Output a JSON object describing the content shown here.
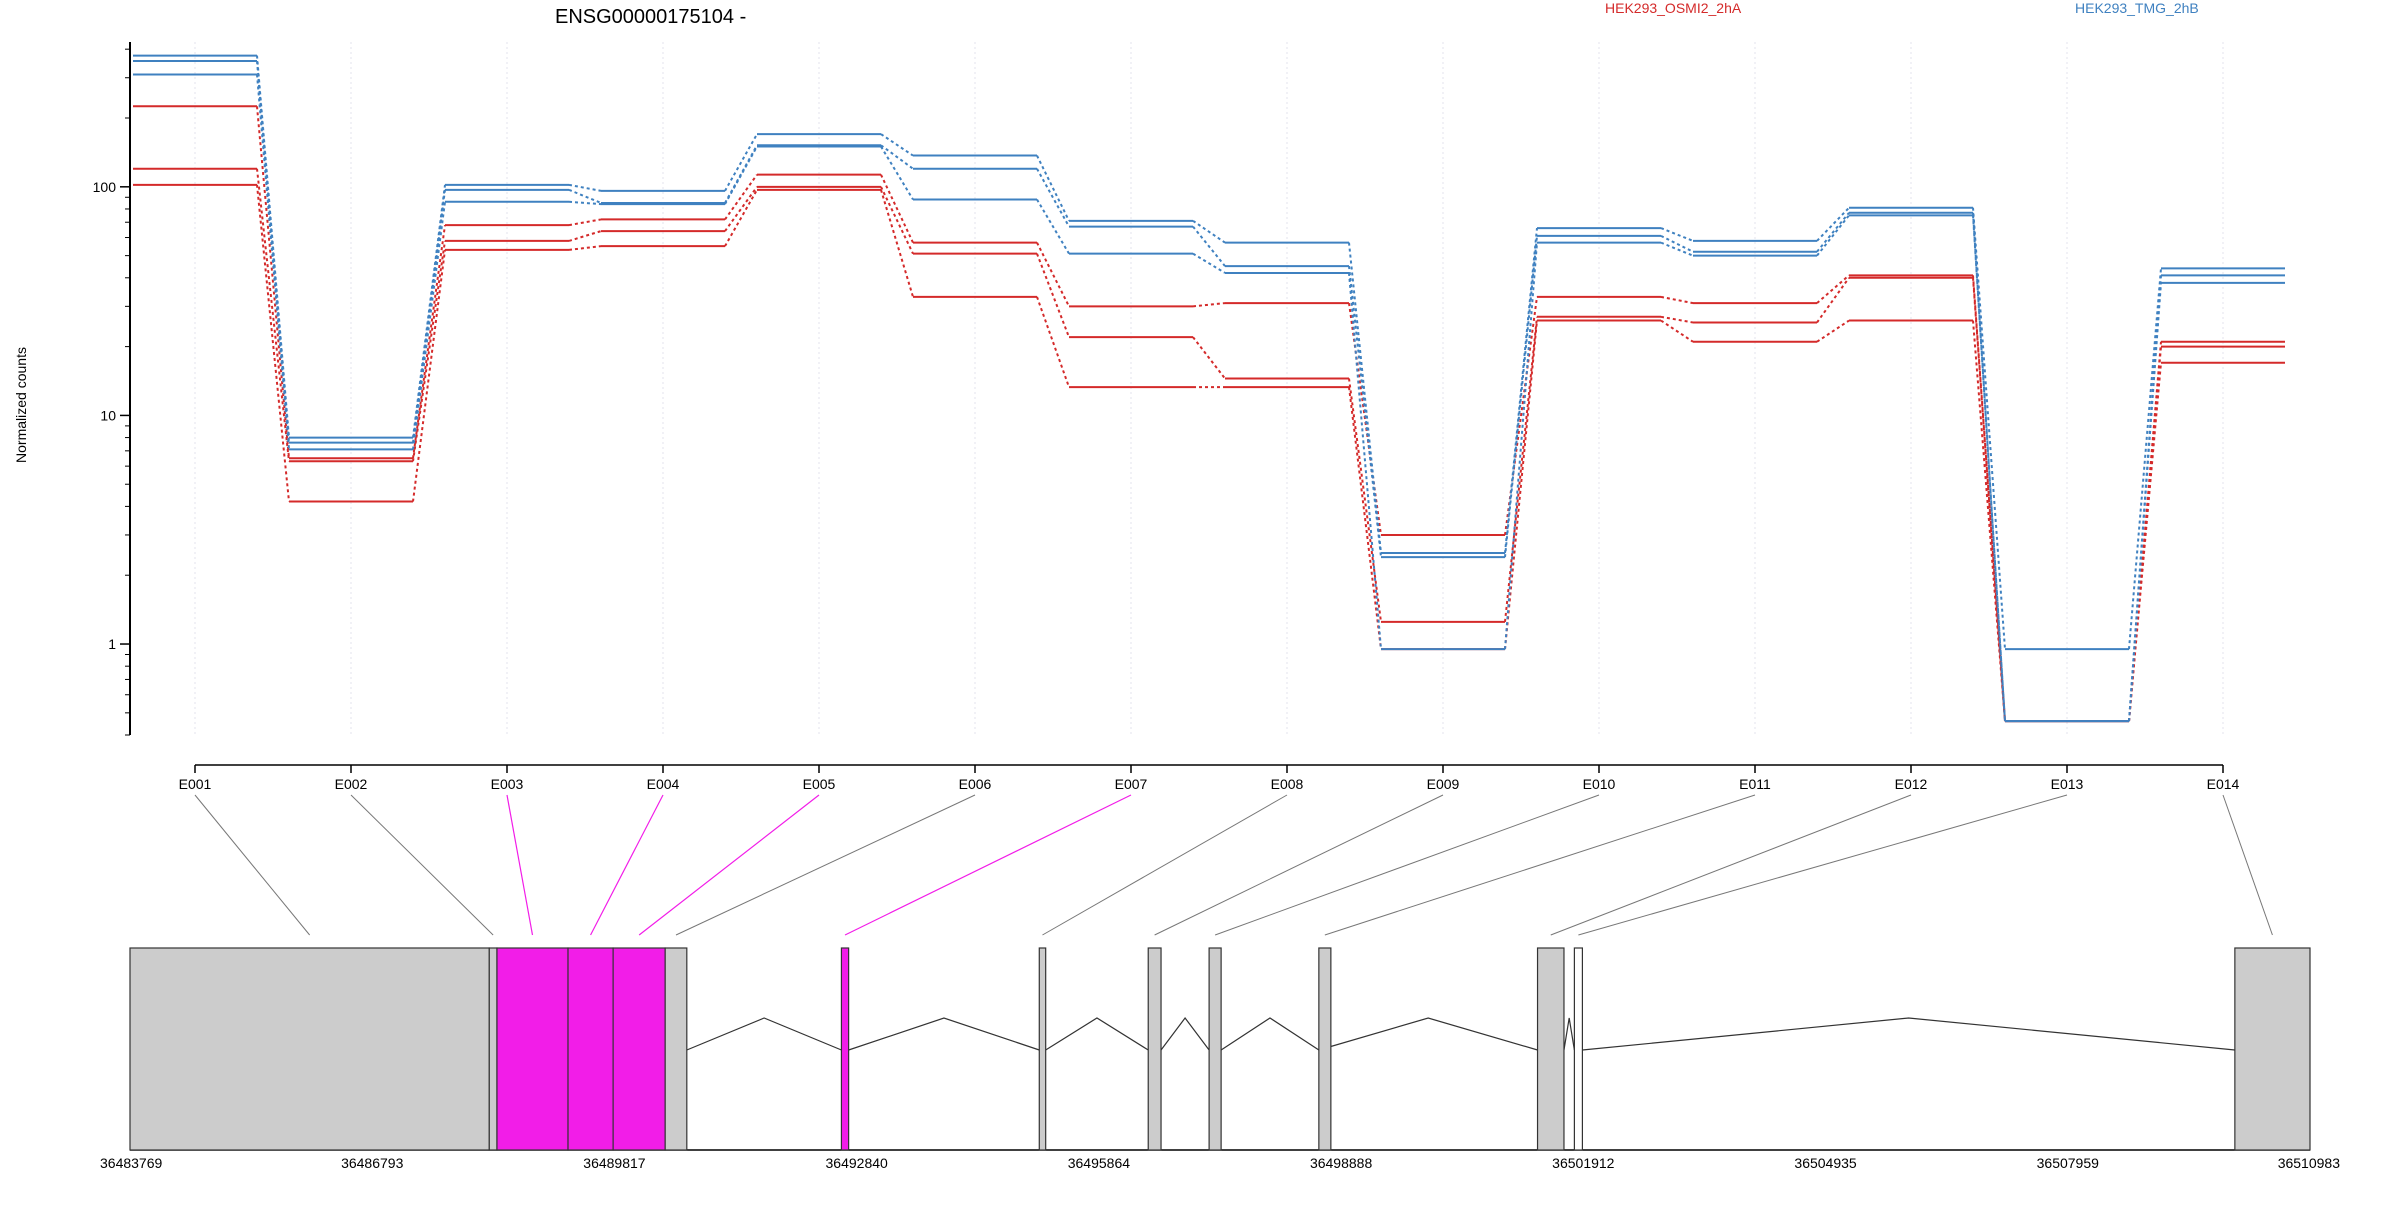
{
  "chart_data": {
    "type": "line",
    "title": "ENSG00000175104 -",
    "ylabel": "Normalized counts",
    "y_scale": "log",
    "ylim": [
      0.4,
      430
    ],
    "y_ticks": [
      1,
      10,
      100
    ],
    "y_tick_labels": [
      "1",
      "10",
      "100"
    ],
    "categories": [
      "E001",
      "E002",
      "E003",
      "E004",
      "E005",
      "E006",
      "E007",
      "E008",
      "E009",
      "E010",
      "E011",
      "E012",
      "E013",
      "E014"
    ],
    "grid": "vertical dotted lines at each exon",
    "legend": [
      {
        "label": "HEK293_OSMI2_2hA",
        "color": "#d42a2a"
      },
      {
        "label": "HEK293_TMG_2hB",
        "color": "#3f81c0"
      }
    ],
    "series": [
      {
        "group": "HEK293_OSMI2_2hA",
        "color": "#d42a2a",
        "values": [
          225,
          6.5,
          68,
          72,
          113,
          57,
          30,
          31,
          3.0,
          33,
          31,
          41,
          0.46,
          21
        ]
      },
      {
        "group": "HEK293_OSMI2_2hA",
        "color": "#d42a2a",
        "values": [
          120,
          6.3,
          58,
          64,
          100,
          51,
          22,
          14.5,
          1.25,
          27,
          25.5,
          40,
          0.46,
          20
        ]
      },
      {
        "group": "HEK293_OSMI2_2hA",
        "color": "#d42a2a",
        "values": [
          102,
          4.2,
          53,
          55,
          97,
          33,
          13.3,
          13.3,
          0.95,
          26,
          21,
          26,
          0.46,
          17
        ]
      },
      {
        "group": "HEK293_TMG_2hB",
        "color": "#3f81c0",
        "values": [
          375,
          8.0,
          102,
          96,
          170,
          137,
          71,
          57,
          2.5,
          66,
          58,
          81,
          0.95,
          44
        ]
      },
      {
        "group": "HEK293_TMG_2hB",
        "color": "#3f81c0",
        "values": [
          355,
          7.6,
          97,
          85,
          152,
          120,
          67,
          45,
          2.4,
          61,
          52,
          77,
          0.46,
          41
        ]
      },
      {
        "group": "HEK293_TMG_2hB",
        "color": "#3f81c0",
        "values": [
          310,
          7.1,
          86,
          84,
          150,
          88,
          51,
          42,
          0.95,
          57,
          50,
          75,
          0.46,
          38
        ]
      }
    ],
    "gene_model": {
      "coordinate_labels": [
        "36483769",
        "36486793",
        "36489817",
        "36492840",
        "36495864",
        "36498888",
        "36501912",
        "36504935",
        "36507959",
        "36510983"
      ],
      "coord_start": 36483769,
      "coord_end": 36510983,
      "exons": [
        {
          "start": 36483769,
          "end": 36488254,
          "color": "#cccccc",
          "label": "E001"
        },
        {
          "start": 36488254,
          "end": 36488350,
          "color": "#cccccc",
          "label": "E002"
        },
        {
          "start": 36488350,
          "end": 36489237,
          "color": "#f21de8",
          "label": "E003"
        },
        {
          "start": 36489237,
          "end": 36489800,
          "color": "#f21de8",
          "label": "E004"
        },
        {
          "start": 36489800,
          "end": 36490450,
          "color": "#f21de8",
          "label": "E005"
        },
        {
          "start": 36490450,
          "end": 36490720,
          "color": "#cccccc",
          "label": "E006"
        },
        {
          "start": 36492650,
          "end": 36492740,
          "color": "#f21de8",
          "label": "E007"
        },
        {
          "start": 36495120,
          "end": 36495200,
          "color": "#cccccc",
          "label": "E008"
        },
        {
          "start": 36496480,
          "end": 36496640,
          "color": "#cccccc",
          "label": "E009"
        },
        {
          "start": 36497240,
          "end": 36497390,
          "color": "#cccccc",
          "label": "E010"
        },
        {
          "start": 36498610,
          "end": 36498760,
          "color": "#cccccc",
          "label": "E011"
        },
        {
          "start": 36501340,
          "end": 36501670,
          "color": "#cccccc",
          "label": "E012"
        },
        {
          "start": 36501800,
          "end": 36501900,
          "color": "#ffffff",
          "label": "E013"
        },
        {
          "start": 36510045,
          "end": 36510983,
          "color": "#cccccc",
          "label": "E014"
        }
      ],
      "introns": [
        [
          36490720,
          36492650
        ],
        [
          36492740,
          36495120
        ],
        [
          36495200,
          36496480
        ],
        [
          36496640,
          36497240
        ],
        [
          36497390,
          36498610
        ],
        [
          36498610,
          36501340
        ],
        [
          36501670,
          36501800
        ],
        [
          36501900,
          36510045
        ]
      ],
      "highlighted_exons": [
        "E003",
        "E004",
        "E005",
        "E007"
      ],
      "highlight_color": "#f21de8"
    }
  }
}
